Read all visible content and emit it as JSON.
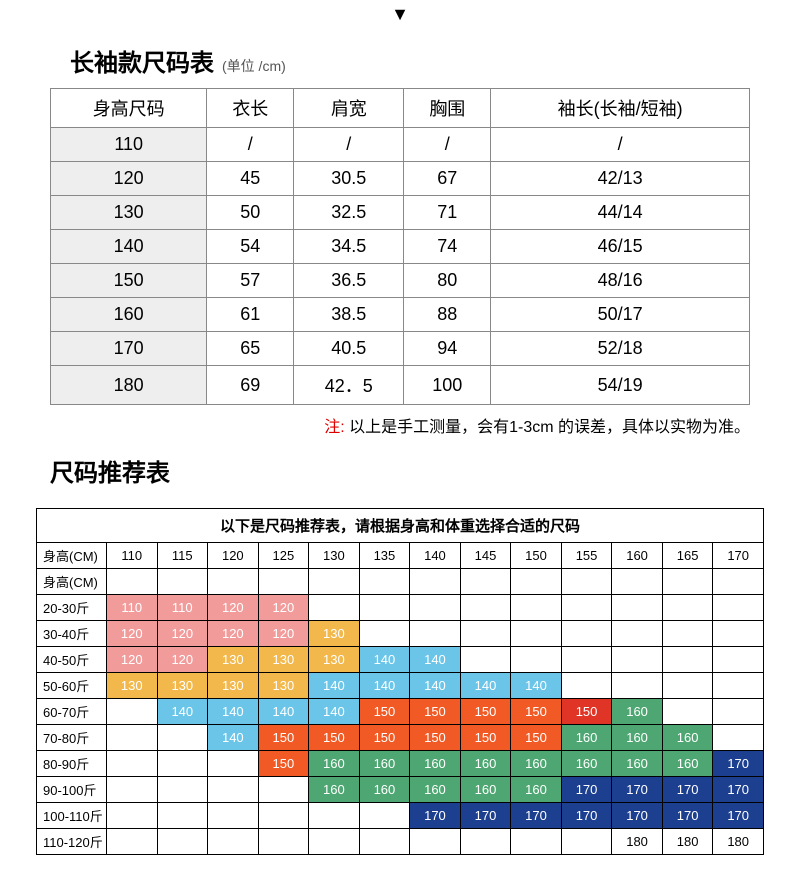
{
  "arrow": "▼",
  "sizeChart": {
    "title": "长袖款尺码表",
    "unit": "(单位 /cm)",
    "columns": [
      "身高尺码",
      "衣长",
      "肩宽",
      "胸围",
      "袖长(长袖/短袖)"
    ],
    "rows": [
      [
        "110",
        "/",
        "/",
        "/",
        "/"
      ],
      [
        "120",
        "45",
        "30.5",
        "67",
        "42/13"
      ],
      [
        "130",
        "50",
        "32.5",
        "71",
        "44/14"
      ],
      [
        "140",
        "54",
        "34.5",
        "74",
        "46/15"
      ],
      [
        "150",
        "57",
        "36.5",
        "80",
        "48/16"
      ],
      [
        "160",
        "61",
        "38.5",
        "88",
        "50/17"
      ],
      [
        "170",
        "65",
        "40.5",
        "94",
        "52/18"
      ],
      [
        "180",
        "69",
        "42．5",
        "100",
        "54/19"
      ]
    ],
    "noteLabel": "注:",
    "noteText": " 以上是手工测量，会有1-3cm 的误差，具体以实物为准。"
  },
  "recChart": {
    "title": "尺码推荐表",
    "caption": "以下是尺码推荐表，请根据身高和体重选择合适的尺码",
    "header1": "身高(CM)",
    "header2": "身高(CM)",
    "heights": [
      "110",
      "115",
      "120",
      "125",
      "130",
      "135",
      "140",
      "145",
      "150",
      "155",
      "160",
      "165",
      "170"
    ],
    "weightRows": [
      {
        "label": "20-30斤",
        "cells": [
          [
            "110",
            "p"
          ],
          [
            "110",
            "p"
          ],
          [
            "120",
            "p"
          ],
          [
            "120",
            "p"
          ],
          "",
          "",
          "",
          "",
          "",
          "",
          "",
          "",
          ""
        ]
      },
      {
        "label": "30-40斤",
        "cells": [
          [
            "120",
            "p"
          ],
          [
            "120",
            "p"
          ],
          [
            "120",
            "p"
          ],
          [
            "120",
            "p"
          ],
          [
            "130",
            "y"
          ],
          "",
          "",
          "",
          "",
          "",
          "",
          "",
          ""
        ]
      },
      {
        "label": "40-50斤",
        "cells": [
          [
            "120",
            "p"
          ],
          [
            "120",
            "p"
          ],
          [
            "130",
            "y"
          ],
          [
            "130",
            "y"
          ],
          [
            "130",
            "y"
          ],
          [
            "140",
            "b"
          ],
          [
            "140",
            "b"
          ],
          "",
          "",
          "",
          "",
          "",
          ""
        ]
      },
      {
        "label": "50-60斤",
        "cells": [
          [
            "130",
            "y"
          ],
          [
            "130",
            "y"
          ],
          [
            "130",
            "y"
          ],
          [
            "130",
            "y"
          ],
          [
            "140",
            "b"
          ],
          [
            "140",
            "b"
          ],
          [
            "140",
            "b"
          ],
          [
            "140",
            "b"
          ],
          [
            "140",
            "b"
          ],
          "",
          "",
          "",
          ""
        ]
      },
      {
        "label": "60-70斤",
        "cells": [
          "",
          [
            "140",
            "b"
          ],
          [
            "140",
            "b"
          ],
          [
            "140",
            "b"
          ],
          [
            "140",
            "b"
          ],
          [
            "150",
            "o"
          ],
          [
            "150",
            "o"
          ],
          [
            "150",
            "o"
          ],
          [
            "150",
            "o"
          ],
          [
            "150",
            "r"
          ],
          [
            "160",
            "g"
          ],
          "",
          ""
        ]
      },
      {
        "label": "70-80斤",
        "cells": [
          "",
          "",
          [
            "140",
            "b"
          ],
          [
            "150",
            "o"
          ],
          [
            "150",
            "o"
          ],
          [
            "150",
            "o"
          ],
          [
            "150",
            "o"
          ],
          [
            "150",
            "o"
          ],
          [
            "150",
            "o"
          ],
          [
            "160",
            "g"
          ],
          [
            "160",
            "g"
          ],
          [
            "160",
            "g"
          ],
          ""
        ]
      },
      {
        "label": "80-90斤",
        "cells": [
          "",
          "",
          "",
          [
            "150",
            "o"
          ],
          [
            "160",
            "g"
          ],
          [
            "160",
            "g"
          ],
          [
            "160",
            "g"
          ],
          [
            "160",
            "g"
          ],
          [
            "160",
            "g"
          ],
          [
            "160",
            "g"
          ],
          [
            "160",
            "g"
          ],
          [
            "160",
            "g"
          ],
          [
            "170",
            "n"
          ]
        ]
      },
      {
        "label": "90-100斤",
        "cells": [
          "",
          "",
          "",
          "",
          [
            "160",
            "g"
          ],
          [
            "160",
            "g"
          ],
          [
            "160",
            "g"
          ],
          [
            "160",
            "g"
          ],
          [
            "160",
            "g"
          ],
          [
            "170",
            "n"
          ],
          [
            "170",
            "n"
          ],
          [
            "170",
            "n"
          ],
          [
            "170",
            "n"
          ]
        ]
      },
      {
        "label": "100-110斤",
        "cells": [
          "",
          "",
          "",
          "",
          "",
          "",
          [
            "170",
            "n"
          ],
          [
            "170",
            "n"
          ],
          [
            "170",
            "n"
          ],
          [
            "170",
            "n"
          ],
          [
            "170",
            "n"
          ],
          [
            "170",
            "n"
          ],
          [
            "170",
            "n"
          ]
        ]
      },
      {
        "label": "110-120斤",
        "cells": [
          "",
          "",
          "",
          "",
          "",
          "",
          "",
          "",
          "",
          "",
          [
            "180",
            "w"
          ],
          [
            "180",
            "w"
          ],
          [
            "180",
            "w"
          ]
        ]
      }
    ],
    "colors": {
      "p": "#f29b9b",
      "y": "#f2b84b",
      "b": "#6ac5e8",
      "o": "#f15a24",
      "r": "#e03426",
      "g": "#4ea772",
      "n": "#1c3f8f",
      "w": "#ffffff"
    }
  }
}
